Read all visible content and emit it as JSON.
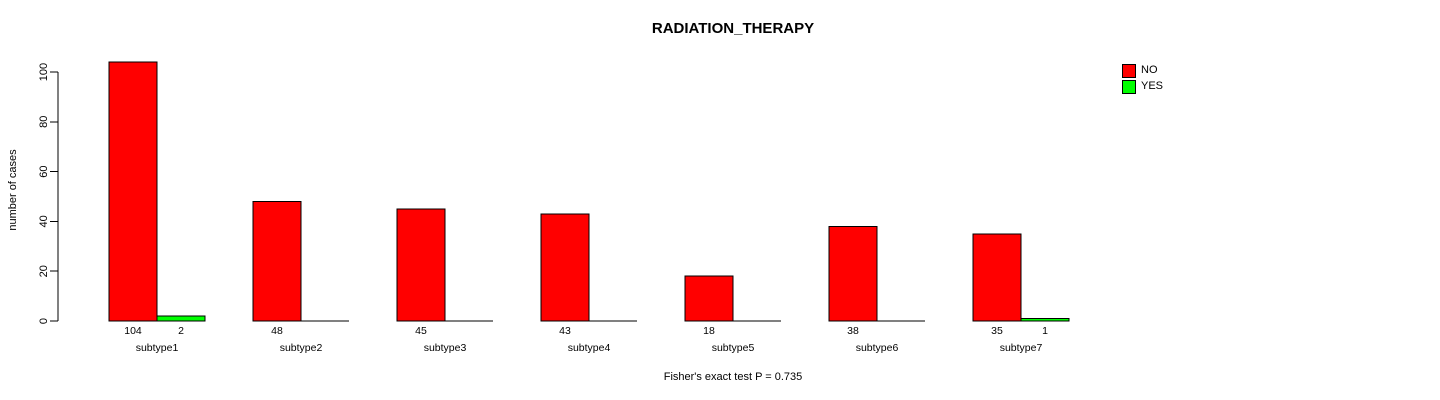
{
  "chart_data": {
    "type": "bar",
    "title": "RADIATION_THERAPY",
    "xlabel": "",
    "ylabel": "number of cases",
    "categories": [
      "subtype1",
      "subtype2",
      "subtype3",
      "subtype4",
      "subtype5",
      "subtype6",
      "subtype7"
    ],
    "series": [
      {
        "name": "NO",
        "color": "#ff0000",
        "values": [
          104,
          48,
          45,
          43,
          18,
          38,
          35
        ]
      },
      {
        "name": "YES",
        "color": "#00ff00",
        "values": [
          2,
          0,
          0,
          0,
          0,
          0,
          1
        ]
      }
    ],
    "ylim": [
      0,
      100
    ],
    "yticks": [
      0,
      20,
      40,
      60,
      80,
      100
    ],
    "grid": false,
    "legend_position": "top-right",
    "bar_value_labels_shown_when_nonzero": true,
    "annotation": "Fisher's exact test P = 0.735",
    "axis_color": "#000000",
    "bar_border_color": "#000000"
  }
}
